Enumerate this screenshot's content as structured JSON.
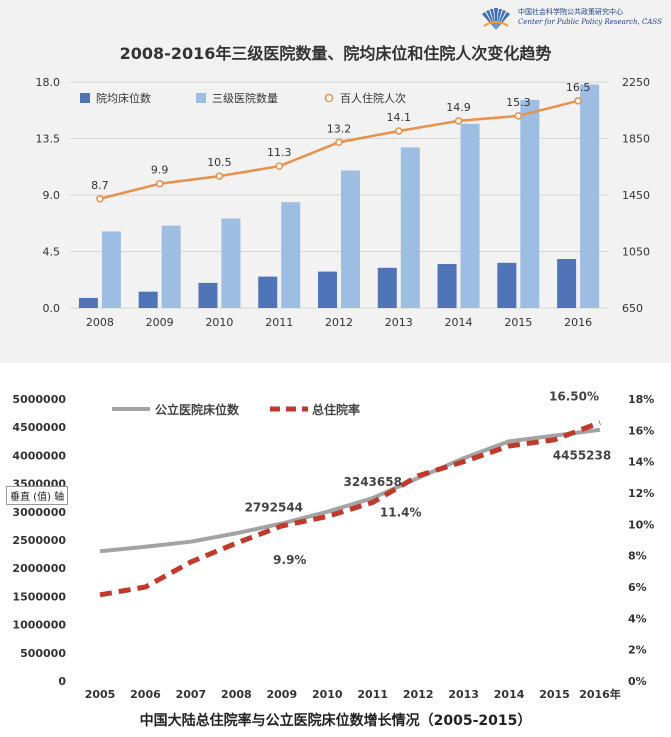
{
  "logo": {
    "name_cn": "中国社会科学院公共政策研究中心",
    "name_en": "Center for Public Policy Research, CASS"
  },
  "chart_data": [
    {
      "type": "bar",
      "title": "2008-2016年三级医院数量、院均床位和住院人次变化趋势",
      "categories": [
        "2008",
        "2009",
        "2010",
        "2011",
        "2012",
        "2013",
        "2014",
        "2015",
        "2016"
      ],
      "y_left": {
        "ticks": [
          "0.0",
          "4.5",
          "9.0",
          "13.5",
          "18.0"
        ],
        "range": [
          0,
          18
        ]
      },
      "y_right": {
        "ticks": [
          "650",
          "1050",
          "1450",
          "1850",
          "2250"
        ],
        "range": [
          650,
          2250
        ]
      },
      "series": [
        {
          "name": "院均床位数",
          "type": "bar",
          "axis": "left",
          "color": "#4f74b8",
          "values": [
            0.8,
            1.3,
            2.0,
            2.5,
            2.9,
            3.2,
            3.5,
            3.6,
            3.9
          ]
        },
        {
          "name": "三级医院数量",
          "type": "bar",
          "axis": "right",
          "color": "#9dbde3",
          "values": [
            1192,
            1233,
            1284,
            1399,
            1624,
            1787,
            1954,
            2123,
            2232
          ]
        },
        {
          "name": "百人住院人次",
          "type": "line",
          "axis": "left",
          "color": "#e8914a",
          "values": [
            8.7,
            9.9,
            10.5,
            11.3,
            13.2,
            14.1,
            14.9,
            15.3,
            16.5
          ],
          "labels": [
            "8.7",
            "9.9",
            "10.5",
            "11.3",
            "13.2",
            "14.1",
            "14.9",
            "15.3",
            "16.5"
          ]
        }
      ]
    },
    {
      "type": "line",
      "title": "中国大陆总住院率与公立医院床位数增长情况（2005-2015）",
      "categories": [
        "2005",
        "2006",
        "2007",
        "2008",
        "2009",
        "2010",
        "2011",
        "2012",
        "2013",
        "2014",
        "2015",
        "2016年"
      ],
      "y_left": {
        "ticks": [
          "0",
          "500000",
          "1000000",
          "1500000",
          "2000000",
          "2500000",
          "3000000",
          "3500000",
          "4000000",
          "4500000",
          "5000000"
        ],
        "range": [
          0,
          5000000
        ]
      },
      "y_right": {
        "ticks": [
          "0%",
          "2%",
          "4%",
          "6%",
          "8%",
          "10%",
          "12%",
          "14%",
          "16%",
          "18%"
        ],
        "range": [
          0,
          18
        ]
      },
      "series": [
        {
          "name": "公立医院床位数",
          "axis": "left",
          "color": "#a3a3a3",
          "style": "solid",
          "values": [
            2300000,
            2380000,
            2470000,
            2620000,
            2792544,
            3000000,
            3243658,
            3600000,
            3950000,
            4250000,
            4350000,
            4455238
          ]
        },
        {
          "name": "总住院率",
          "axis": "right",
          "color": "#c0392b",
          "style": "dashed",
          "values": [
            5.5,
            6.0,
            7.6,
            8.8,
            9.9,
            10.5,
            11.4,
            13.1,
            14.0,
            15.0,
            15.4,
            16.5
          ]
        }
      ],
      "annotations": [
        "2792544",
        "9.9%",
        "3243658",
        "11.4%",
        "16.50%",
        "4455238"
      ]
    }
  ],
  "tooltip": "垂直 (值) 轴"
}
